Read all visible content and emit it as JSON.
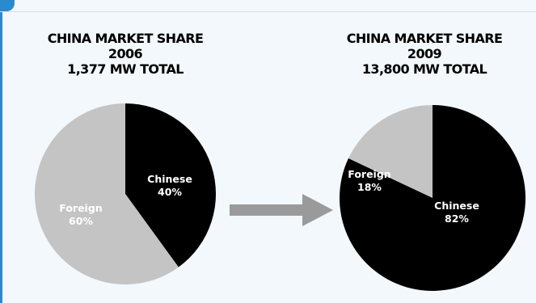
{
  "colors": {
    "accent": "#2a8ad0",
    "chinese": "#000000",
    "foreign": "#c4c4c4",
    "arrow": "#9a9a9a"
  },
  "chart_data": [
    {
      "type": "pie",
      "title": "CHINA MARKET SHARE",
      "year": "2006",
      "total": "1,377 MW TOTAL",
      "slices": [
        {
          "label": "Chinese",
          "value": 40,
          "value_label": "40%",
          "color": "#000000",
          "text_color": "#ffffff"
        },
        {
          "label": "Foreign",
          "value": 60,
          "value_label": "60%",
          "color": "#c4c4c4",
          "text_color": "#ffffff"
        }
      ]
    },
    {
      "type": "pie",
      "title": "CHINA MARKET SHARE",
      "year": "2009",
      "total": "13,800 MW TOTAL",
      "slices": [
        {
          "label": "Chinese",
          "value": 82,
          "value_label": "82%",
          "color": "#000000",
          "text_color": "#ffffff"
        },
        {
          "label": "Foreign",
          "value": 18,
          "value_label": "18%",
          "color": "#c4c4c4",
          "text_color": "#ffffff"
        }
      ]
    }
  ]
}
